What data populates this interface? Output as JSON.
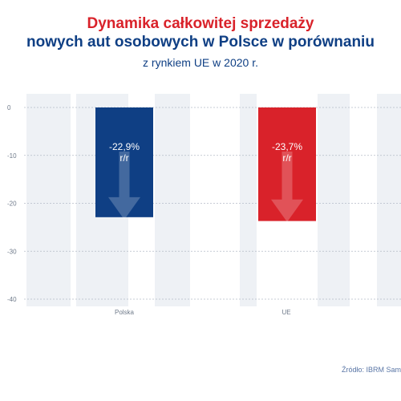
{
  "title": {
    "line1": "Dynamika całkowitej sprzedaży",
    "line2": "nowych aut osobowych w Polsce w porównaniu",
    "subtitle": "z rynkiem UE w 2020 r."
  },
  "source": "Źródło: IBRM Sam",
  "colors": {
    "title_red": "#d9222a",
    "title_blue": "#0f3f84",
    "polska_bar": "#0f3f84",
    "ue_bar": "#d9222a",
    "background_stripes": "#eef1f5"
  },
  "chart_data": {
    "type": "bar",
    "categories": [
      "Polska",
      "UE"
    ],
    "values": [
      -22.9,
      -23.7
    ],
    "value_labels": [
      "-22,9%",
      "-23,7%"
    ],
    "unit_labels": [
      "r/r",
      "r/r"
    ],
    "bar_colors": [
      "#0f3f84",
      "#d9222a"
    ],
    "bar_icons": [
      "down-arrow-icon",
      "down-arrow-icon"
    ],
    "yticks": [
      0,
      -10,
      -20,
      -30,
      -40
    ],
    "ylim": [
      -40,
      0
    ],
    "grid": true,
    "legend": "none"
  }
}
